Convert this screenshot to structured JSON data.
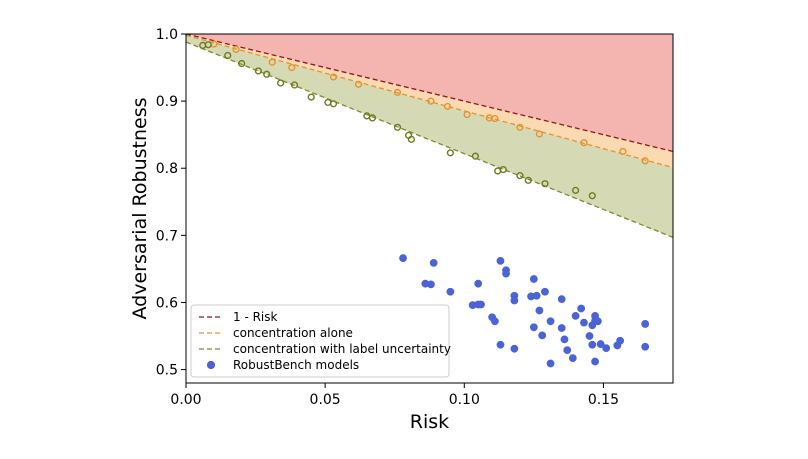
{
  "chart_data": {
    "type": "scatter",
    "xlabel": "Risk",
    "ylabel": "Adversarial Robustness",
    "xlim": [
      0.0,
      0.175
    ],
    "ylim": [
      0.48,
      1.0
    ],
    "x_ticks": [
      "0.00",
      "0.05",
      "0.10",
      "0.15"
    ],
    "y_ticks": [
      "0.5",
      "0.6",
      "0.7",
      "0.8",
      "0.9",
      "1.0"
    ],
    "grid": false,
    "legend_position": "lower-left",
    "regions": [
      {
        "name": "above 1 - Risk",
        "color": "#f4b4b0"
      },
      {
        "name": "concentration alone band",
        "color": "#fbd9b3"
      },
      {
        "name": "concentration with label uncertainty band",
        "color": "#d6dab4"
      }
    ],
    "lines": [
      {
        "name": "1 - Risk",
        "color": "#8b1a1a",
        "x": [
          0.0,
          0.175
        ],
        "y": [
          1.0,
          0.825
        ]
      },
      {
        "name": "concentration alone",
        "color": "#e8922e",
        "x": [
          0.0,
          0.175
        ],
        "y": [
          0.998,
          0.801
        ]
      },
      {
        "name": "concentration with label uncertainty",
        "color": "#7d8a2e",
        "x": [
          0.0,
          0.175
        ],
        "y": [
          0.988,
          0.697
        ]
      }
    ],
    "series": [
      {
        "name": "concentration alone",
        "color": "#e8922e",
        "marker": "hollow-circle",
        "points": [
          [
            0.01,
            0.985
          ],
          [
            0.018,
            0.977
          ],
          [
            0.031,
            0.958
          ],
          [
            0.038,
            0.95
          ],
          [
            0.053,
            0.936
          ],
          [
            0.062,
            0.925
          ],
          [
            0.076,
            0.913
          ],
          [
            0.088,
            0.9
          ],
          [
            0.094,
            0.892
          ],
          [
            0.101,
            0.88
          ],
          [
            0.109,
            0.875
          ],
          [
            0.111,
            0.874
          ],
          [
            0.12,
            0.861
          ],
          [
            0.127,
            0.851
          ],
          [
            0.143,
            0.838
          ],
          [
            0.157,
            0.825
          ],
          [
            0.165,
            0.811
          ]
        ]
      },
      {
        "name": "concentration with label uncertainty",
        "color": "#6f7a1e",
        "marker": "hollow-circle",
        "points": [
          [
            0.006,
            0.983
          ],
          [
            0.008,
            0.984
          ],
          [
            0.015,
            0.968
          ],
          [
            0.02,
            0.956
          ],
          [
            0.026,
            0.945
          ],
          [
            0.029,
            0.94
          ],
          [
            0.034,
            0.927
          ],
          [
            0.039,
            0.924
          ],
          [
            0.045,
            0.906
          ],
          [
            0.051,
            0.898
          ],
          [
            0.053,
            0.896
          ],
          [
            0.065,
            0.878
          ],
          [
            0.067,
            0.875
          ],
          [
            0.076,
            0.861
          ],
          [
            0.08,
            0.849
          ],
          [
            0.081,
            0.843
          ],
          [
            0.095,
            0.823
          ],
          [
            0.104,
            0.818
          ],
          [
            0.112,
            0.796
          ],
          [
            0.114,
            0.798
          ],
          [
            0.12,
            0.789
          ],
          [
            0.123,
            0.782
          ],
          [
            0.129,
            0.777
          ],
          [
            0.14,
            0.767
          ],
          [
            0.146,
            0.759
          ]
        ]
      },
      {
        "name": "RobustBench models",
        "color": "#4a63d6",
        "marker": "filled-circle",
        "points": [
          [
            0.078,
            0.666
          ],
          [
            0.086,
            0.628
          ],
          [
            0.088,
            0.627
          ],
          [
            0.089,
            0.659
          ],
          [
            0.095,
            0.616
          ],
          [
            0.103,
            0.596
          ],
          [
            0.105,
            0.597
          ],
          [
            0.106,
            0.597
          ],
          [
            0.105,
            0.628
          ],
          [
            0.11,
            0.578
          ],
          [
            0.111,
            0.572
          ],
          [
            0.113,
            0.662
          ],
          [
            0.115,
            0.648
          ],
          [
            0.115,
            0.643
          ],
          [
            0.118,
            0.61
          ],
          [
            0.118,
            0.603
          ],
          [
            0.113,
            0.537
          ],
          [
            0.118,
            0.531
          ],
          [
            0.124,
            0.609
          ],
          [
            0.125,
            0.635
          ],
          [
            0.126,
            0.61
          ],
          [
            0.127,
            0.588
          ],
          [
            0.125,
            0.563
          ],
          [
            0.129,
            0.616
          ],
          [
            0.128,
            0.551
          ],
          [
            0.131,
            0.572
          ],
          [
            0.131,
            0.509
          ],
          [
            0.135,
            0.605
          ],
          [
            0.135,
            0.562
          ],
          [
            0.136,
            0.545
          ],
          [
            0.137,
            0.529
          ],
          [
            0.139,
            0.517
          ],
          [
            0.14,
            0.58
          ],
          [
            0.142,
            0.591
          ],
          [
            0.143,
            0.57
          ],
          [
            0.145,
            0.55
          ],
          [
            0.146,
            0.566
          ],
          [
            0.146,
            0.537
          ],
          [
            0.147,
            0.58
          ],
          [
            0.147,
            0.573
          ],
          [
            0.148,
            0.572
          ],
          [
            0.149,
            0.538
          ],
          [
            0.151,
            0.532
          ],
          [
            0.155,
            0.536
          ],
          [
            0.156,
            0.543
          ],
          [
            0.147,
            0.512
          ],
          [
            0.165,
            0.568
          ],
          [
            0.165,
            0.534
          ]
        ]
      }
    ],
    "legend": [
      {
        "label": "1 - Risk",
        "kind": "dashed-line",
        "color": "#8b1a1a"
      },
      {
        "label": "concentration alone",
        "kind": "dashed-line",
        "color": "#e8922e"
      },
      {
        "label": "concentration with label uncertainty",
        "kind": "dashed-line",
        "color": "#7d8a2e"
      },
      {
        "label": "RobustBench models",
        "kind": "filled-circle",
        "color": "#4a63d6"
      }
    ]
  }
}
